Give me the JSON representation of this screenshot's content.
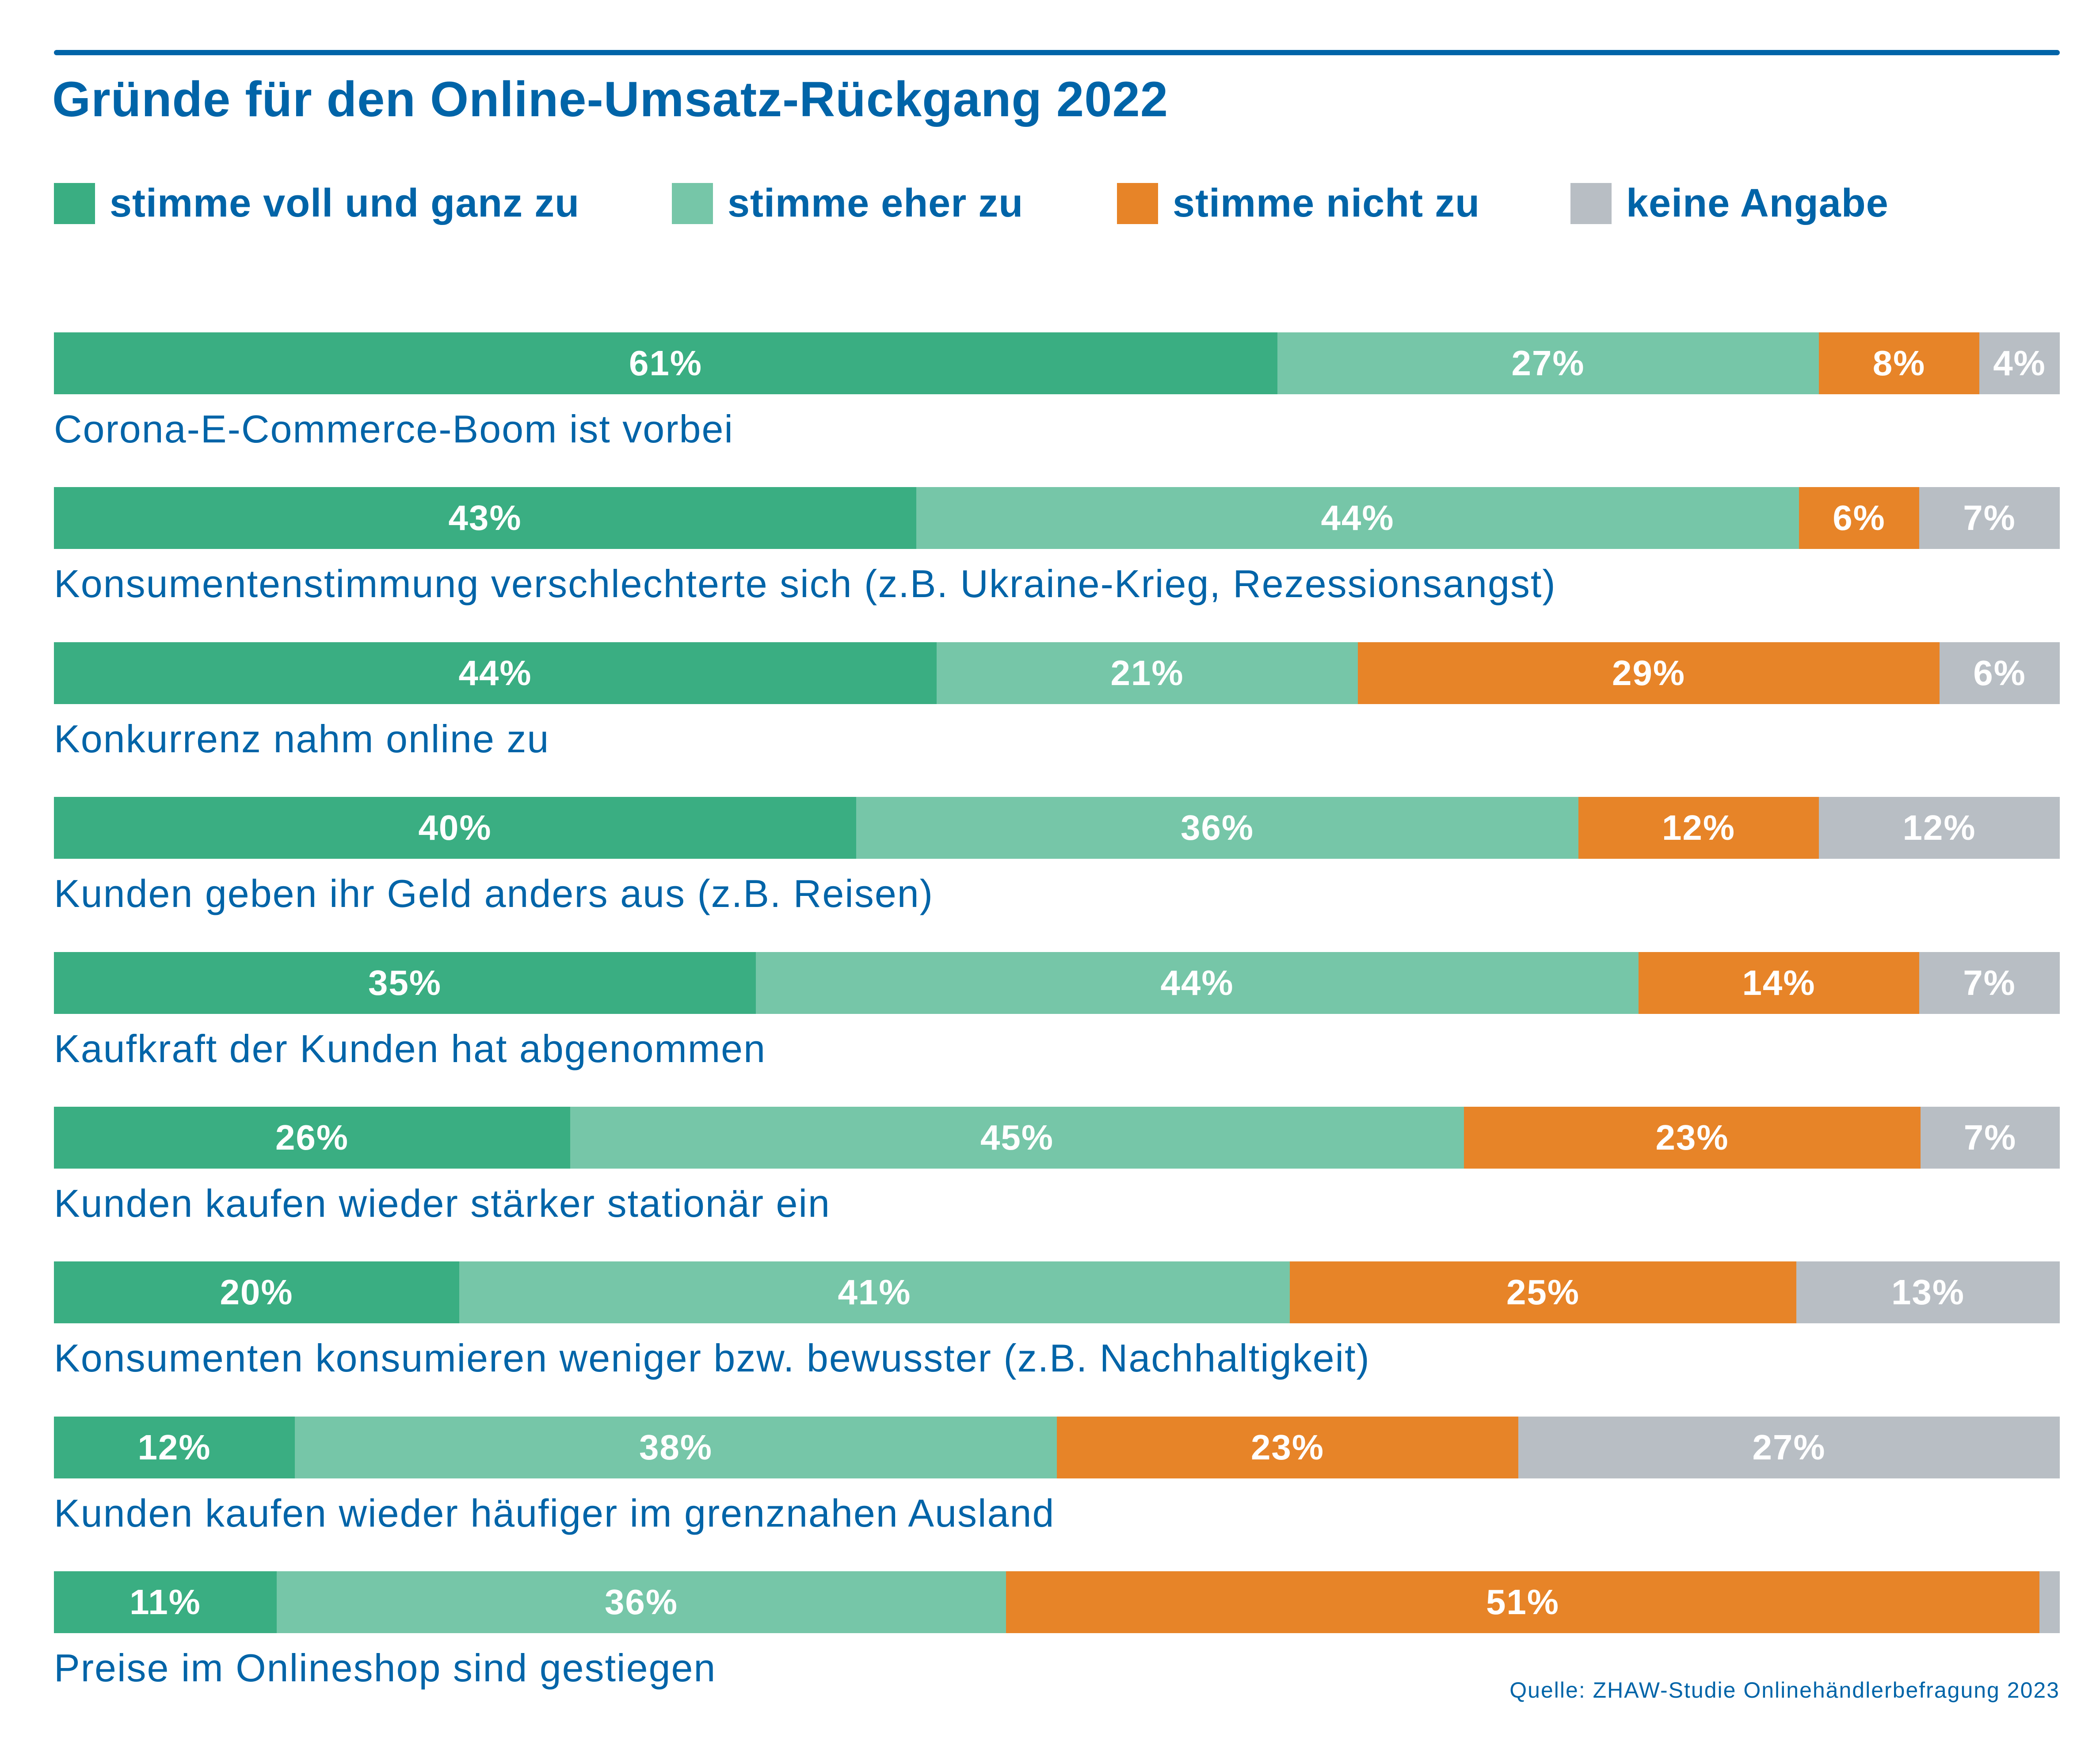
{
  "chart_data": {
    "type": "bar",
    "orientation": "horizontal",
    "stacked": true,
    "title": "Gründe für den Online-Umsatz-Rückgang 2022",
    "xlabel": "",
    "ylabel": "",
    "xlim": [
      0,
      100
    ],
    "grid": false,
    "legend_position": "top",
    "source": "Quelle: ZHAW-Studie Onlinehändlerbefragung 2023",
    "legend": [
      {
        "name": "stimme voll und ganz zu",
        "color": "#3aae82"
      },
      {
        "name": "stimme eher zu",
        "color": "#76c6a8"
      },
      {
        "name": "stimme nicht zu",
        "color": "#e78428"
      },
      {
        "name": "keine Angabe",
        "color": "#b8bec4"
      }
    ],
    "categories": [
      "Corona-E-Commerce-Boom ist vorbei",
      "Konsumentenstimmung verschlechterte sich (z.B. Ukraine-Krieg, Rezessionsangst)",
      "Konkurrenz nahm online zu",
      "Kunden geben ihr Geld anders aus (z.B. Reisen)",
      "Kaufkraft der Kunden hat abgenommen",
      "Kunden kaufen wieder stärker stationär ein",
      "Konsumenten konsumieren weniger bzw. bewusster (z.B. Nachhaltigkeit)",
      "Kunden kaufen wieder häufiger im grenznahen Ausland",
      "Preise im Onlineshop sind gestiegen"
    ],
    "series": [
      {
        "name": "stimme voll und ganz zu",
        "values": [
          61,
          43,
          44,
          40,
          35,
          26,
          20,
          12,
          11
        ]
      },
      {
        "name": "stimme eher zu",
        "values": [
          27,
          44,
          21,
          36,
          44,
          45,
          41,
          38,
          36
        ]
      },
      {
        "name": "stimme nicht zu",
        "values": [
          8,
          6,
          29,
          12,
          14,
          23,
          25,
          23,
          51
        ]
      },
      {
        "name": "keine Angabe",
        "values": [
          4,
          7,
          6,
          12,
          7,
          7,
          13,
          27,
          1
        ]
      }
    ],
    "data_labels": [
      [
        "61%",
        "27%",
        "8%",
        "4%"
      ],
      [
        "43%",
        "44%",
        "6%",
        "7%"
      ],
      [
        "44%",
        "21%",
        "29%",
        "6%"
      ],
      [
        "40%",
        "36%",
        "12%",
        "12%"
      ],
      [
        "35%",
        "44%",
        "14%",
        "7%"
      ],
      [
        "26%",
        "45%",
        "23%",
        "7%"
      ],
      [
        "20%",
        "41%",
        "25%",
        "13%"
      ],
      [
        "12%",
        "38%",
        "23%",
        "27%"
      ],
      [
        "11%",
        "36%",
        "51%",
        ""
      ]
    ]
  }
}
